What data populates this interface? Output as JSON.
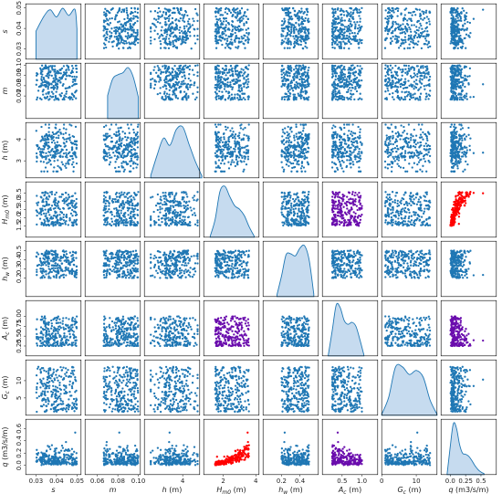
{
  "chart_data": {
    "type": "scatter",
    "kind": "pairplot",
    "n_points": 240,
    "diagonal": "kde",
    "grid": false,
    "legend": "none",
    "colors": {
      "scatter": "#1f77b4",
      "kde_line": "#1f77b4",
      "kde_fill": "#c6dbef",
      "highlight_red": "#ff0000",
      "highlight_purple": "#6a0dad"
    },
    "highlighted_pairs": [
      {
        "vars": [
          "H_m0",
          "q"
        ],
        "color": "#ff0000"
      },
      {
        "vars": [
          "H_m0",
          "A_c"
        ],
        "color": "#6a0dad"
      },
      {
        "vars": [
          "A_c",
          "q"
        ],
        "color": "#6a0dad"
      }
    ],
    "variables": [
      {
        "key": "s",
        "label": "s",
        "range": [
          0.025,
          0.052
        ],
        "ticks": [
          0.03,
          0.04,
          0.05
        ],
        "ytick_labels": [
          "0.03",
          "0.04",
          "0.05"
        ],
        "xtick_labels": [
          "0.03",
          "0.04",
          "0.05"
        ]
      },
      {
        "key": "m",
        "label": "m",
        "range": [
          0.048,
          0.102
        ],
        "ticks": [
          0.07,
          0.08,
          0.09,
          0.1
        ],
        "ytick_labels": [
          "0.07",
          "0.08",
          "0.09",
          "0.10"
        ],
        "xtick_labels": [
          "0.06",
          "0.08",
          "0.10"
        ],
        "xticks": [
          0.06,
          0.08,
          0.1
        ]
      },
      {
        "key": "h",
        "label": "h (m)",
        "range": [
          2.2,
          4.8
        ],
        "ticks": [
          3,
          4
        ],
        "ytick_labels": [
          "3",
          "4"
        ],
        "xtick_labels": [
          "2",
          "4"
        ],
        "xticks": [
          2,
          4
        ]
      },
      {
        "key": "H_m0",
        "label": "H_m0 (m)",
        "range": [
          0.8,
          4.2
        ],
        "ticks": [
          1.5,
          2.0,
          2.5,
          3.0,
          3.5
        ],
        "ytick_labels": [
          "1.5",
          "2.0",
          "2.5",
          "3.0",
          "3.5"
        ],
        "xtick_labels": [
          "2",
          "4"
        ],
        "xticks": [
          2,
          4
        ]
      },
      {
        "key": "h_w",
        "label": "h_w (m)",
        "range": [
          0.0,
          0.6
        ],
        "ticks": [
          0.2,
          0.3,
          0.4,
          0.5
        ],
        "ytick_labels": [
          "0.2",
          "0.3",
          "0.4",
          "0.5"
        ],
        "xtick_labels": [
          "0.2",
          "0.4"
        ],
        "xticks": [
          0.2,
          0.4
        ]
      },
      {
        "key": "A_c",
        "label": "A_c (m)",
        "range": [
          0.0,
          1.4
        ],
        "ticks": [
          0.25,
          0.5,
          0.75,
          1.0
        ],
        "ytick_labels": [
          "0.25",
          "0.50",
          "0.75",
          "1.00"
        ],
        "xtick_labels": [
          "0.5",
          "1.0"
        ],
        "xticks": [
          0.5,
          1.0
        ]
      },
      {
        "key": "G_c",
        "label": "G_c (m)",
        "range": [
          0,
          16
        ],
        "ticks": [
          5,
          10
        ],
        "ytick_labels": [
          "5",
          "10"
        ],
        "xtick_labels": [
          "0",
          "10"
        ],
        "xticks": [
          0,
          10
        ]
      },
      {
        "key": "q",
        "label": "q (m3/s/m)",
        "range": [
          -0.15,
          0.75
        ],
        "ticks": [
          0.0,
          0.2,
          0.4,
          0.6
        ],
        "ytick_labels": [
          "0.0",
          "0.2",
          "0.4",
          "0.6"
        ],
        "xtick_labels": [
          "0.0",
          "0.25",
          "0.5"
        ],
        "xticks": [
          0.0,
          0.25,
          0.5
        ]
      }
    ],
    "diagonal_kde": {
      "s": {
        "x": [
          0.03,
          0.034,
          0.037,
          0.04,
          0.043,
          0.046,
          0.049,
          0.05
        ],
        "y": [
          0.55,
          0.85,
          0.97,
          0.83,
          1.0,
          0.86,
          0.98,
          0.6
        ]
      },
      "m": {
        "x": [
          0.07,
          0.075,
          0.08,
          0.085,
          0.09,
          0.095,
          0.1
        ],
        "y": [
          0.45,
          0.78,
          0.86,
          0.9,
          1.0,
          0.82,
          0.42
        ]
      },
      "h": {
        "x": [
          2.5,
          2.8,
          3.1,
          3.4,
          3.7,
          4.0,
          4.3,
          4.6,
          4.9
        ],
        "y": [
          0.05,
          0.45,
          0.78,
          0.64,
          0.95,
          1.0,
          0.66,
          0.32,
          0.04
        ]
      },
      "H_m0": {
        "x": [
          1.2,
          1.5,
          1.8,
          2.1,
          2.4,
          2.7,
          3.0,
          3.3,
          3.6,
          3.9
        ],
        "y": [
          0.02,
          0.35,
          0.9,
          1.0,
          0.8,
          0.62,
          0.55,
          0.42,
          0.2,
          0.02
        ]
      },
      "h_w": {
        "x": [
          0.15,
          0.2,
          0.25,
          0.3,
          0.35,
          0.4,
          0.45,
          0.5,
          0.55
        ],
        "y": [
          0.03,
          0.4,
          0.82,
          0.84,
          0.8,
          0.95,
          1.0,
          0.72,
          0.05
        ]
      },
      "A_c": {
        "x": [
          0.15,
          0.25,
          0.35,
          0.45,
          0.55,
          0.65,
          0.75,
          0.85,
          0.95,
          1.05
        ],
        "y": [
          0.02,
          0.5,
          1.0,
          0.95,
          0.7,
          0.62,
          0.66,
          0.58,
          0.32,
          0.02
        ]
      },
      "G_c": {
        "x": [
          0,
          2,
          4,
          6,
          8,
          10,
          12,
          14,
          16
        ],
        "y": [
          0.02,
          0.35,
          0.95,
          0.95,
          0.8,
          0.88,
          0.75,
          0.3,
          0.02
        ]
      },
      "q": {
        "x": [
          -0.05,
          0.0,
          0.05,
          0.1,
          0.15,
          0.2,
          0.25,
          0.3,
          0.35,
          0.4,
          0.45,
          0.5,
          0.55
        ],
        "y": [
          0.02,
          0.55,
          1.0,
          0.92,
          0.6,
          0.42,
          0.4,
          0.36,
          0.28,
          0.18,
          0.1,
          0.05,
          0.02
        ]
      }
    }
  }
}
